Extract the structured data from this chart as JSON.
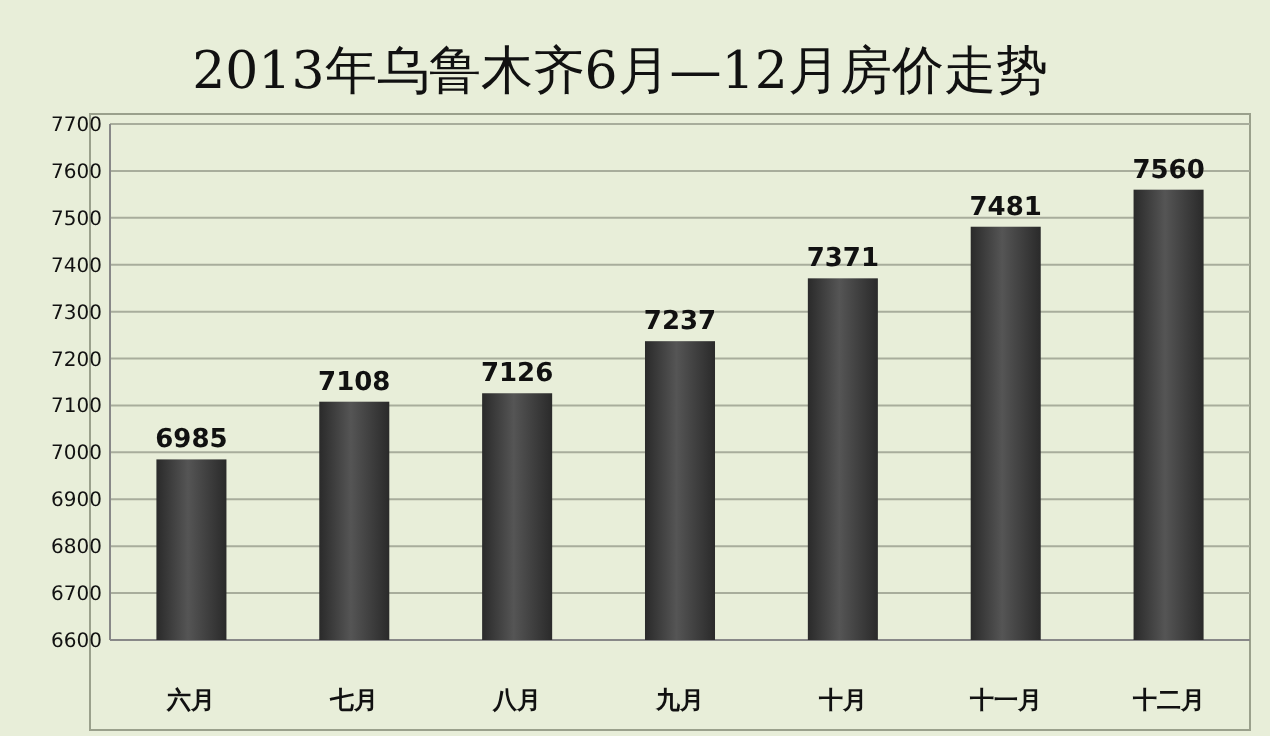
{
  "chart_data": {
    "type": "bar",
    "title": "2013年乌鲁木齐6月—12月房价走势",
    "categories": [
      "六月",
      "七月",
      "八月",
      "九月",
      "十月",
      "十一月",
      "十二月"
    ],
    "values": [
      6985,
      7108,
      7126,
      7237,
      7371,
      7481,
      7560
    ],
    "color": "#555555",
    "ylim": [
      6600,
      7700
    ],
    "yticks": [
      6600,
      6700,
      6800,
      6900,
      7000,
      7100,
      7200,
      7300,
      7400,
      7500,
      7600,
      7700
    ],
    "grid": "y",
    "data_labels": true
  }
}
